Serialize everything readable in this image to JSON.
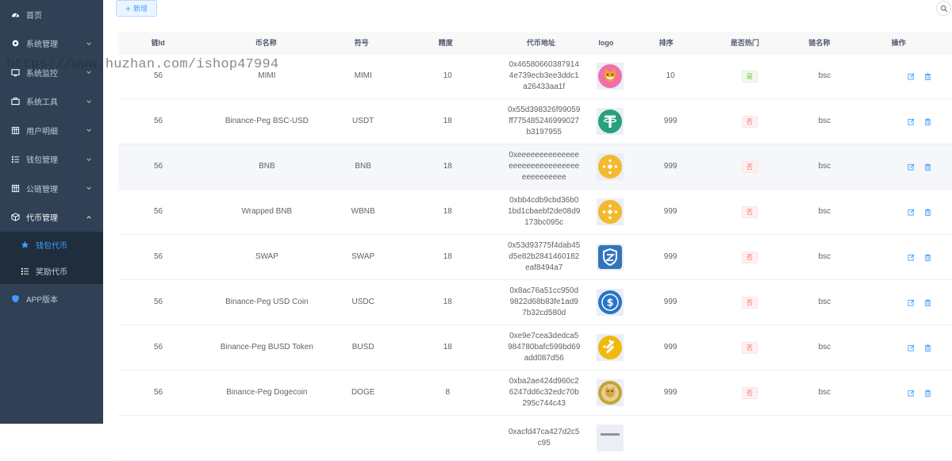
{
  "sidebar": {
    "items": [
      {
        "label": "首页",
        "icon": "dashboard-icon"
      },
      {
        "label": "系统管理",
        "icon": "gear-icon",
        "has_children": true
      },
      {
        "label": "系统监控",
        "icon": "monitor-icon",
        "has_children": true
      },
      {
        "label": "系统工具",
        "icon": "toolbox-icon",
        "has_children": true
      },
      {
        "label": "用户明细",
        "icon": "table-icon",
        "has_children": true
      },
      {
        "label": "钱包管理",
        "icon": "list-icon",
        "has_children": true
      },
      {
        "label": "公链管理",
        "icon": "table-icon",
        "has_children": true
      },
      {
        "label": "代币管理",
        "icon": "cube-icon",
        "has_children": true,
        "open": true
      }
    ],
    "subitems": [
      {
        "label": "钱包代币",
        "icon": "star-icon",
        "active": true
      },
      {
        "label": "奖励代币",
        "icon": "list-icon"
      }
    ],
    "app_item": {
      "label": "APP版本",
      "icon": "shield-icon"
    }
  },
  "watermark": "https://www.huzhan.com/ishop47994",
  "toolbar": {
    "add_label": "新增"
  },
  "table": {
    "columns": [
      "链Id",
      "币名称",
      "符号",
      "精度",
      "代币地址",
      "logo",
      "排序",
      "是否热门",
      "链名称",
      "操作"
    ],
    "rows": [
      {
        "chain_id": "56",
        "name": "MIMI",
        "symbol": "MIMI",
        "decimals": "10",
        "address": "0x465806603879144e739ecb3ee3ddc1a26433aa1f",
        "logo": "mimi-logo",
        "sort": "10",
        "hot": "是",
        "hot_state": "yes",
        "chain": "bsc"
      },
      {
        "chain_id": "56",
        "name": "Binance-Peg BSC-USD",
        "symbol": "USDT",
        "decimals": "18",
        "address": "0x55d398326f99059ff775485246999027b3197955",
        "logo": "tether-logo",
        "sort": "999",
        "hot": "否",
        "hot_state": "no",
        "chain": "bsc"
      },
      {
        "chain_id": "56",
        "name": "BNB",
        "symbol": "BNB",
        "decimals": "18",
        "address": "0xeeeeeeeeeeeeeeeeeeeeeeeeeeeeeeeeeeeeeeee",
        "logo": "bnb-logo",
        "sort": "999",
        "hot": "否",
        "hot_state": "no",
        "chain": "bsc"
      },
      {
        "chain_id": "56",
        "name": "Wrapped BNB",
        "symbol": "WBNB",
        "decimals": "18",
        "address": "0xbb4cdb9cbd36b01bd1cbaebf2de08d9173bc095c",
        "logo": "bnb-logo",
        "sort": "999",
        "hot": "否",
        "hot_state": "no",
        "chain": "bsc"
      },
      {
        "chain_id": "56",
        "name": "SWAP",
        "symbol": "SWAP",
        "decimals": "18",
        "address": "0x53d93775f4dab45d5e82b2841460182eaf8494a7",
        "logo": "swap-logo",
        "sort": "999",
        "hot": "否",
        "hot_state": "no",
        "chain": "bsc"
      },
      {
        "chain_id": "56",
        "name": "Binance-Peg USD Coin",
        "symbol": "USDC",
        "decimals": "18",
        "address": "0x8ac76a51cc950d9822d68b83fe1ad97b32cd580d",
        "logo": "usdc-logo",
        "sort": "999",
        "hot": "否",
        "hot_state": "no",
        "chain": "bsc"
      },
      {
        "chain_id": "56",
        "name": "Binance-Peg BUSD Token",
        "symbol": "BUSD",
        "decimals": "18",
        "address": "0xe9e7cea3dedca5984780bafc599bd69add087d56",
        "logo": "busd-logo",
        "sort": "999",
        "hot": "否",
        "hot_state": "no",
        "chain": "bsc"
      },
      {
        "chain_id": "56",
        "name": "Binance-Peg Dogecoin",
        "symbol": "DOGE",
        "decimals": "8",
        "address": "0xba2ae424d960c26247dd6c32edc70b295c744c43",
        "logo": "doge-logo",
        "sort": "999",
        "hot": "否",
        "hot_state": "no",
        "chain": "bsc"
      },
      {
        "chain_id": "",
        "name": "",
        "symbol": "",
        "decimals": "",
        "address": "0xacfd47ca427d2c5c95",
        "logo": "partial-logo",
        "sort": "",
        "hot": "",
        "hot_state": "",
        "chain": ""
      }
    ]
  },
  "colors": {
    "sidebar_bg": "#304156",
    "submenu_bg": "#1f2d3d",
    "accent": "#409eff",
    "success": "#67c23a",
    "danger": "#f56c6c"
  }
}
